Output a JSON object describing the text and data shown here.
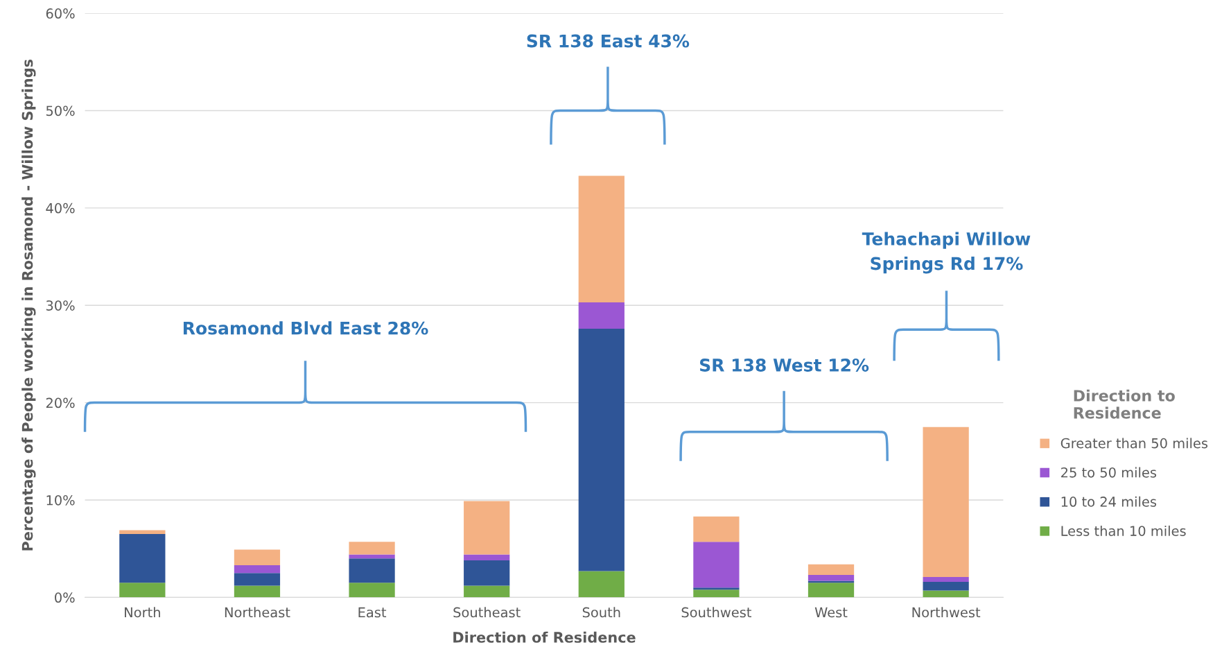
{
  "chart_data": {
    "type": "bar",
    "stacked": true,
    "xlabel": "Direction of Residence",
    "ylabel": "Percentage of People working in Rosamond - Willow Springs",
    "legend_title": "Direction to\nResidence",
    "categories": [
      "North",
      "Northeast",
      "East",
      "Southeast",
      "South",
      "Southwest",
      "West",
      "Northwest"
    ],
    "series": [
      {
        "name": "Less than 10 miles",
        "color": "#70ad47",
        "values": [
          1.5,
          1.2,
          1.5,
          1.2,
          2.7,
          0.8,
          1.5,
          0.7
        ]
      },
      {
        "name": "10 to 24 miles",
        "color": "#2f5597",
        "values": [
          5.0,
          1.3,
          2.5,
          2.6,
          24.9,
          0.2,
          0.2,
          0.9
        ]
      },
      {
        "name": "25 to 50 miles",
        "color": "#9b57d3",
        "values": [
          0,
          0.8,
          0.4,
          0.6,
          2.7,
          4.7,
          0.6,
          0.5
        ]
      },
      {
        "name": "Greater than 50 miles",
        "color": "#f4b183",
        "values": [
          0.4,
          1.6,
          1.3,
          5.5,
          13.0,
          2.6,
          1.1,
          15.4
        ]
      }
    ],
    "ylim": [
      0,
      60
    ],
    "yticks": [
      {
        "value": 0,
        "label": "0%"
      },
      {
        "value": 10,
        "label": "10%"
      },
      {
        "value": 20,
        "label": "20%"
      },
      {
        "value": 30,
        "label": "30%"
      },
      {
        "value": 40,
        "label": "40%"
      },
      {
        "value": 50,
        "label": "50%"
      },
      {
        "value": 60,
        "label": "60%"
      }
    ],
    "grid": "y",
    "legend": "right",
    "annotations": [
      "Rosamond Blvd East 28%",
      "SR 138 East 43%",
      "SR 138 West 12%",
      "Tehachapi Willow\nSprings Rd 17%"
    ]
  }
}
